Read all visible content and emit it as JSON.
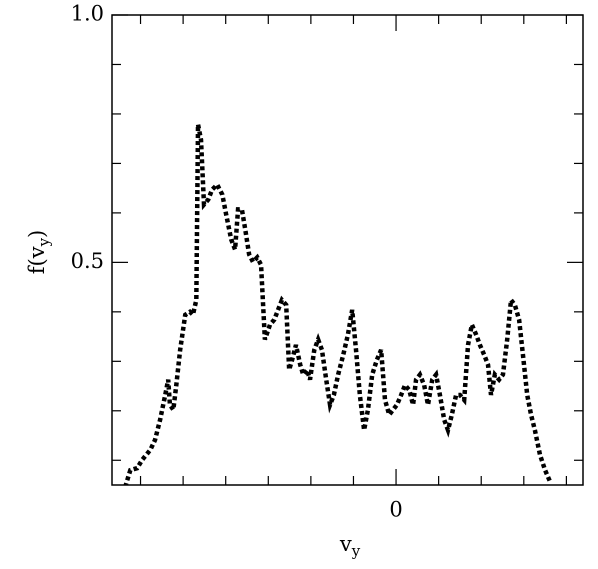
{
  "chart_data": {
    "type": "line",
    "xlabel": [
      "v",
      "y"
    ],
    "ylabel": [
      "f(v",
      "y",
      ")"
    ],
    "xlim": [
      -6.67,
      4.39
    ],
    "ylim": [
      0.05,
      1.0
    ],
    "xticks": [
      0
    ],
    "xminorticks": [
      -6,
      -5,
      -4,
      -3,
      -2,
      -1,
      1,
      2,
      3,
      4
    ],
    "yticks": [
      0.5,
      {
        "value": 1.0,
        "label": "1.0"
      }
    ],
    "yminorticks": [
      0.1,
      0.2,
      0.3,
      0.4,
      0.6,
      0.7,
      0.8,
      0.9
    ],
    "color": "#000000",
    "x": [
      -6.36,
      -6.24,
      -6.08,
      -5.96,
      -5.77,
      -5.66,
      -5.54,
      -5.42,
      -5.35,
      -5.31,
      -5.23,
      -5.16,
      -5.07,
      -4.95,
      -4.84,
      -4.77,
      -4.69,
      -4.65,
      -4.58,
      -4.51,
      -4.41,
      -4.32,
      -4.2,
      -4.08,
      -3.99,
      -3.87,
      -3.78,
      -3.71,
      -3.62,
      -3.54,
      -3.45,
      -3.36,
      -3.26,
      -3.17,
      -3.08,
      -2.96,
      -2.86,
      -2.77,
      -2.68,
      -2.58,
      -2.51,
      -2.44,
      -2.35,
      -2.25,
      -2.18,
      -2.09,
      -2.02,
      -1.92,
      -1.83,
      -1.74,
      -1.64,
      -1.55,
      -1.46,
      -1.36,
      -1.24,
      -1.13,
      -1.03,
      -0.94,
      -0.85,
      -0.75,
      -0.66,
      -0.56,
      -0.45,
      -0.35,
      -0.26,
      -0.16,
      -0.07,
      0.02,
      0.12,
      0.21,
      0.31,
      0.4,
      0.47,
      0.56,
      0.66,
      0.75,
      0.85,
      0.94,
      1.03,
      1.13,
      1.22,
      1.31,
      1.41,
      1.5,
      1.6,
      1.69,
      1.78,
      1.88,
      1.97,
      2.07,
      2.16,
      2.23,
      2.32,
      2.42,
      2.51,
      2.61,
      2.7,
      2.79,
      2.89,
      2.98,
      3.08,
      3.17,
      3.26,
      3.38,
      3.5,
      3.62
    ],
    "values": [
      0.046,
      0.08,
      0.084,
      0.101,
      0.121,
      0.141,
      0.182,
      0.232,
      0.263,
      0.212,
      0.202,
      0.252,
      0.323,
      0.394,
      0.4,
      0.394,
      0.424,
      0.779,
      0.748,
      0.617,
      0.627,
      0.647,
      0.657,
      0.637,
      0.597,
      0.546,
      0.526,
      0.607,
      0.607,
      0.566,
      0.516,
      0.501,
      0.51,
      0.495,
      0.344,
      0.374,
      0.384,
      0.404,
      0.424,
      0.414,
      0.283,
      0.303,
      0.333,
      0.293,
      0.273,
      0.283,
      0.263,
      0.323,
      0.344,
      0.323,
      0.263,
      0.212,
      0.232,
      0.273,
      0.313,
      0.354,
      0.404,
      0.323,
      0.232,
      0.161,
      0.202,
      0.273,
      0.303,
      0.323,
      0.222,
      0.192,
      0.202,
      0.212,
      0.232,
      0.252,
      0.242,
      0.212,
      0.263,
      0.273,
      0.252,
      0.212,
      0.263,
      0.273,
      0.232,
      0.182,
      0.161,
      0.192,
      0.232,
      0.232,
      0.222,
      0.333,
      0.374,
      0.354,
      0.333,
      0.313,
      0.293,
      0.232,
      0.273,
      0.263,
      0.273,
      0.344,
      0.424,
      0.414,
      0.384,
      0.313,
      0.232,
      0.192,
      0.161,
      0.111,
      0.08,
      0.056
    ]
  }
}
